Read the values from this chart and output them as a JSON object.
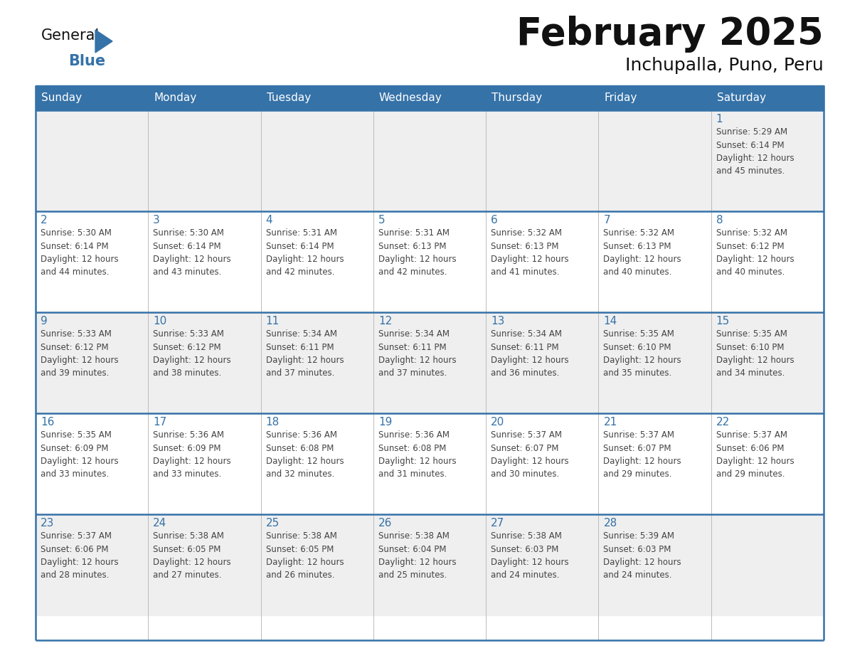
{
  "title": "February 2025",
  "subtitle": "Inchupalla, Puno, Peru",
  "header_color": "#3572a8",
  "header_text_color": "#ffffff",
  "cell_bg_odd": "#efefef",
  "cell_bg_even": "#ffffff",
  "day_number_color": "#3572a8",
  "info_text_color": "#444444",
  "border_color": "#3572a8",
  "grid_line_color": "#bbbbbb",
  "days_of_week": [
    "Sunday",
    "Monday",
    "Tuesday",
    "Wednesday",
    "Thursday",
    "Friday",
    "Saturday"
  ],
  "weeks": [
    [
      {
        "day": 0,
        "info": ""
      },
      {
        "day": 0,
        "info": ""
      },
      {
        "day": 0,
        "info": ""
      },
      {
        "day": 0,
        "info": ""
      },
      {
        "day": 0,
        "info": ""
      },
      {
        "day": 0,
        "info": ""
      },
      {
        "day": 1,
        "info": "Sunrise: 5:29 AM\nSunset: 6:14 PM\nDaylight: 12 hours\nand 45 minutes."
      }
    ],
    [
      {
        "day": 2,
        "info": "Sunrise: 5:30 AM\nSunset: 6:14 PM\nDaylight: 12 hours\nand 44 minutes."
      },
      {
        "day": 3,
        "info": "Sunrise: 5:30 AM\nSunset: 6:14 PM\nDaylight: 12 hours\nand 43 minutes."
      },
      {
        "day": 4,
        "info": "Sunrise: 5:31 AM\nSunset: 6:14 PM\nDaylight: 12 hours\nand 42 minutes."
      },
      {
        "day": 5,
        "info": "Sunrise: 5:31 AM\nSunset: 6:13 PM\nDaylight: 12 hours\nand 42 minutes."
      },
      {
        "day": 6,
        "info": "Sunrise: 5:32 AM\nSunset: 6:13 PM\nDaylight: 12 hours\nand 41 minutes."
      },
      {
        "day": 7,
        "info": "Sunrise: 5:32 AM\nSunset: 6:13 PM\nDaylight: 12 hours\nand 40 minutes."
      },
      {
        "day": 8,
        "info": "Sunrise: 5:32 AM\nSunset: 6:12 PM\nDaylight: 12 hours\nand 40 minutes."
      }
    ],
    [
      {
        "day": 9,
        "info": "Sunrise: 5:33 AM\nSunset: 6:12 PM\nDaylight: 12 hours\nand 39 minutes."
      },
      {
        "day": 10,
        "info": "Sunrise: 5:33 AM\nSunset: 6:12 PM\nDaylight: 12 hours\nand 38 minutes."
      },
      {
        "day": 11,
        "info": "Sunrise: 5:34 AM\nSunset: 6:11 PM\nDaylight: 12 hours\nand 37 minutes."
      },
      {
        "day": 12,
        "info": "Sunrise: 5:34 AM\nSunset: 6:11 PM\nDaylight: 12 hours\nand 37 minutes."
      },
      {
        "day": 13,
        "info": "Sunrise: 5:34 AM\nSunset: 6:11 PM\nDaylight: 12 hours\nand 36 minutes."
      },
      {
        "day": 14,
        "info": "Sunrise: 5:35 AM\nSunset: 6:10 PM\nDaylight: 12 hours\nand 35 minutes."
      },
      {
        "day": 15,
        "info": "Sunrise: 5:35 AM\nSunset: 6:10 PM\nDaylight: 12 hours\nand 34 minutes."
      }
    ],
    [
      {
        "day": 16,
        "info": "Sunrise: 5:35 AM\nSunset: 6:09 PM\nDaylight: 12 hours\nand 33 minutes."
      },
      {
        "day": 17,
        "info": "Sunrise: 5:36 AM\nSunset: 6:09 PM\nDaylight: 12 hours\nand 33 minutes."
      },
      {
        "day": 18,
        "info": "Sunrise: 5:36 AM\nSunset: 6:08 PM\nDaylight: 12 hours\nand 32 minutes."
      },
      {
        "day": 19,
        "info": "Sunrise: 5:36 AM\nSunset: 6:08 PM\nDaylight: 12 hours\nand 31 minutes."
      },
      {
        "day": 20,
        "info": "Sunrise: 5:37 AM\nSunset: 6:07 PM\nDaylight: 12 hours\nand 30 minutes."
      },
      {
        "day": 21,
        "info": "Sunrise: 5:37 AM\nSunset: 6:07 PM\nDaylight: 12 hours\nand 29 minutes."
      },
      {
        "day": 22,
        "info": "Sunrise: 5:37 AM\nSunset: 6:06 PM\nDaylight: 12 hours\nand 29 minutes."
      }
    ],
    [
      {
        "day": 23,
        "info": "Sunrise: 5:37 AM\nSunset: 6:06 PM\nDaylight: 12 hours\nand 28 minutes."
      },
      {
        "day": 24,
        "info": "Sunrise: 5:38 AM\nSunset: 6:05 PM\nDaylight: 12 hours\nand 27 minutes."
      },
      {
        "day": 25,
        "info": "Sunrise: 5:38 AM\nSunset: 6:05 PM\nDaylight: 12 hours\nand 26 minutes."
      },
      {
        "day": 26,
        "info": "Sunrise: 5:38 AM\nSunset: 6:04 PM\nDaylight: 12 hours\nand 25 minutes."
      },
      {
        "day": 27,
        "info": "Sunrise: 5:38 AM\nSunset: 6:03 PM\nDaylight: 12 hours\nand 24 minutes."
      },
      {
        "day": 28,
        "info": "Sunrise: 5:39 AM\nSunset: 6:03 PM\nDaylight: 12 hours\nand 24 minutes."
      },
      {
        "day": 0,
        "info": ""
      }
    ]
  ],
  "logo_text_general": "General",
  "logo_text_blue": "Blue",
  "logo_color_general": "#111111",
  "logo_color_blue": "#3572a8",
  "logo_triangle_color": "#3572a8",
  "title_fontsize": 38,
  "subtitle_fontsize": 18,
  "header_fontsize": 11,
  "day_num_fontsize": 11,
  "info_fontsize": 8.5
}
